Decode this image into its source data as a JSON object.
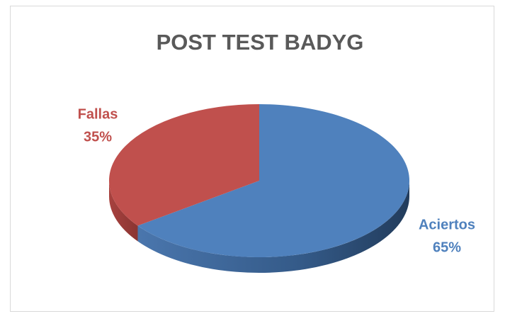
{
  "chart_data": {
    "type": "pie",
    "title": "POST TEST BADYG",
    "categories": [
      "Aciertos",
      "Fallas"
    ],
    "values": [
      65,
      35
    ],
    "value_labels": [
      "65%",
      "35%"
    ],
    "colors": [
      "#4f81bd",
      "#c0504d"
    ],
    "start_angle": -90,
    "direction": "clockwise"
  }
}
